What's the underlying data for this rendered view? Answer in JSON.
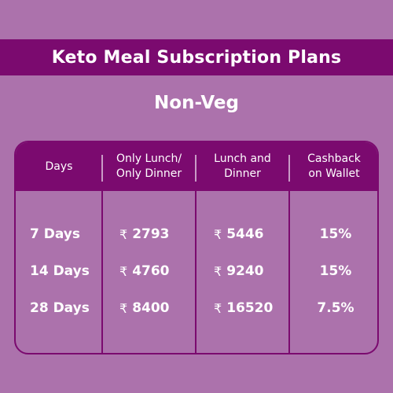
{
  "title": "Keto Meal Subscription Plans",
  "subtitle": "Non-Veg",
  "currency_symbol": "₹",
  "colors": {
    "background": "#ac72ac",
    "accent": "#7b0a6f",
    "text": "#ffffff"
  },
  "table": {
    "headers": {
      "days": "Days",
      "single_line1": "Only Lunch/",
      "single_line2": "Only Dinner",
      "both_line1": "Lunch and",
      "both_line2": "Dinner",
      "cashback_line1": "Cashback",
      "cashback_line2": "on Wallet"
    },
    "rows": [
      {
        "days": "7 Days",
        "single": "2793",
        "both": "5446",
        "cashback": "15%"
      },
      {
        "days": "14 Days",
        "single": "4760",
        "both": "9240",
        "cashback": "15%"
      },
      {
        "days": "28 Days",
        "single": "8400",
        "both": "16520",
        "cashback": "7.5%"
      }
    ]
  }
}
